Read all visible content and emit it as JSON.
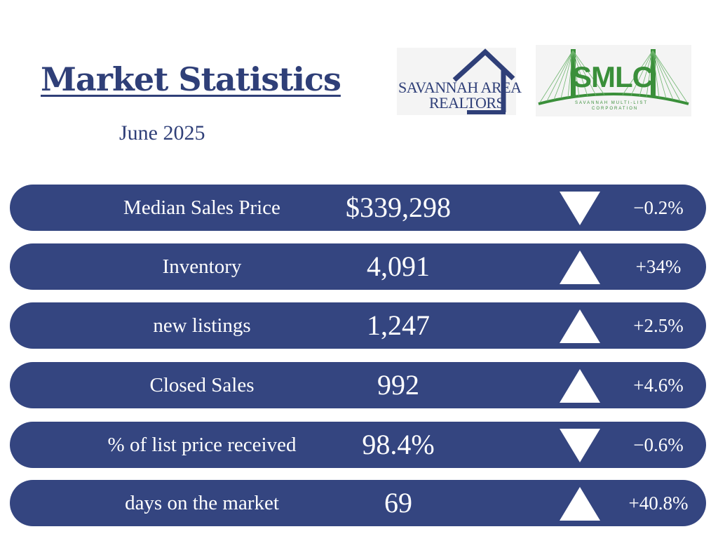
{
  "header": {
    "title": "Market Statistics",
    "subtitle": "June 2025"
  },
  "logos": {
    "sar": {
      "line1": "SAVANNAH AREA",
      "line2": "REALTORS",
      "icon": "house-outline-icon",
      "color": "#2f3f78"
    },
    "smlc": {
      "text": "SMLC",
      "sub1": "SAVANNAH MULTI-LIST",
      "sub2": "CORPORATION",
      "icon": "bridge-icon",
      "color": "#3a8f3a"
    }
  },
  "colors": {
    "row_background": "#344580",
    "title": "#2f3f78",
    "text": "#ffffff"
  },
  "stats": [
    {
      "label": "Median Sales Price",
      "value": "$339,298",
      "direction": "down",
      "icon": "down-triangle-icon",
      "change": "−0.2%"
    },
    {
      "label": "Inventory",
      "value": "4,091",
      "direction": "up",
      "icon": "up-triangle-icon",
      "change": "+34%"
    },
    {
      "label": "new listings",
      "value": "1,247",
      "direction": "up",
      "icon": "up-triangle-icon",
      "change": "+2.5%"
    },
    {
      "label": "Closed Sales",
      "value": "992",
      "direction": "up",
      "icon": "up-triangle-icon",
      "change": "+4.6%"
    },
    {
      "label": "% of list price received",
      "value": "98.4%",
      "direction": "down",
      "icon": "down-triangle-icon",
      "change": "−0.6%"
    },
    {
      "label": "days on the market",
      "value": "69",
      "direction": "up",
      "icon": "up-triangle-icon",
      "change": "+40.8%"
    }
  ]
}
